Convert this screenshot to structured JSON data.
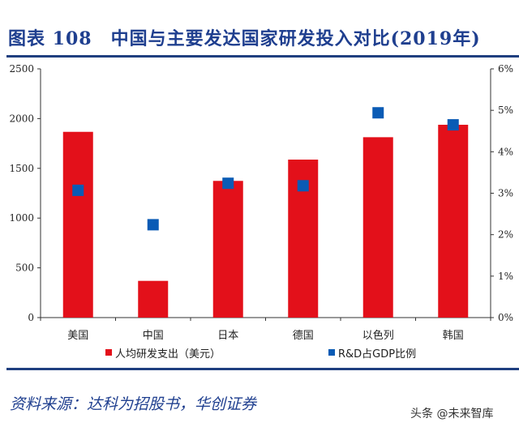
{
  "title": "图表 108　中国与主要发达国家研发投入对比(2019年)",
  "source": "资料来源：达科为招股书，华创证券",
  "watermark": "头条 @未来智库",
  "chart_data": {
    "type": "bar+scatter",
    "categories": [
      "美国",
      "中国",
      "日本",
      "德国",
      "以色列",
      "韩国"
    ],
    "series": [
      {
        "name": "人均研发支出（美元）",
        "type": "bar",
        "axis": "left",
        "color": "#e3101a",
        "values": [
          1867,
          369,
          1374,
          1588,
          1813,
          1938
        ]
      },
      {
        "name": "R&D占GDP比例",
        "type": "scatter",
        "axis": "right",
        "color": "#0a5bb5",
        "values": [
          3.07,
          2.24,
          3.24,
          3.18,
          4.94,
          4.65
        ]
      }
    ],
    "ylim": [
      0,
      2500
    ],
    "yticks": [
      "0",
      "500",
      "1000",
      "1500",
      "2000",
      "2500"
    ],
    "y2lim": [
      0,
      6
    ],
    "y2ticks": [
      "0%",
      "1%",
      "2%",
      "3%",
      "4%",
      "5%",
      "6%"
    ],
    "grid": false,
    "legend": "bottom"
  }
}
